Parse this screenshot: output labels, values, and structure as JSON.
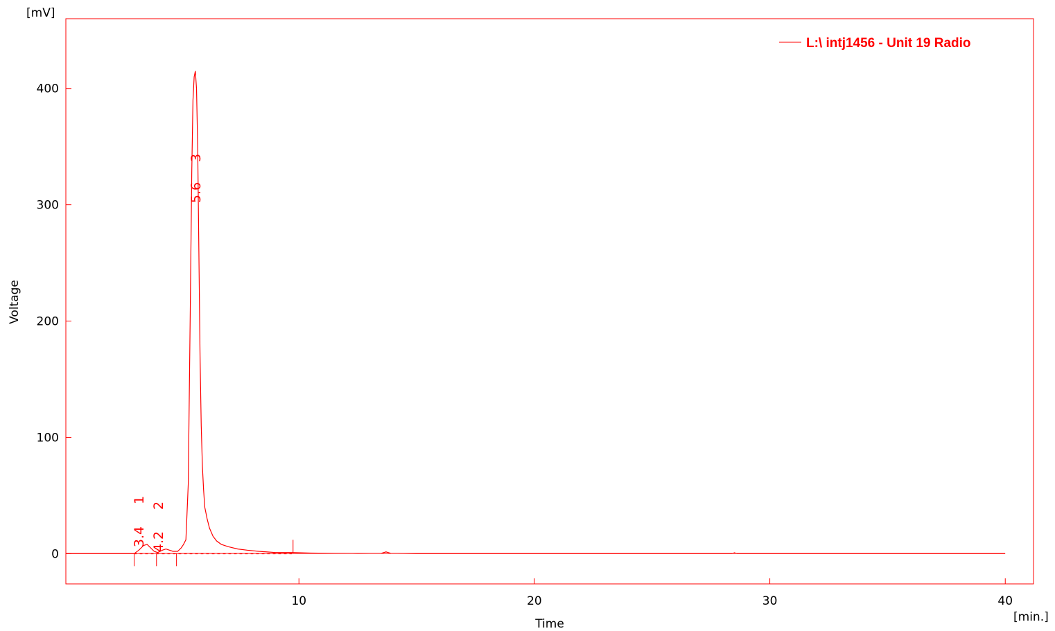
{
  "chart_data": {
    "type": "line",
    "xlabel": "Time",
    "ylabel": "Voltage",
    "x_unit": "[min.]",
    "y_unit": "[mV]",
    "xlim": [
      0.1,
      41.2
    ],
    "ylim": [
      -26,
      460
    ],
    "x_ticks": [
      10,
      20,
      30,
      40
    ],
    "y_ticks": [
      0,
      100,
      200,
      300,
      400
    ],
    "grid": false,
    "legend_position": "top-right",
    "color": "#ff0000",
    "series": [
      {
        "name": "L:\\ intj1456 - Unit 19 Radio",
        "x": [
          0.1,
          3.0,
          3.2,
          3.4,
          3.55,
          3.7,
          3.85,
          4.0,
          4.2,
          4.35,
          4.5,
          4.65,
          4.85,
          5.0,
          5.1,
          5.2,
          5.3,
          5.38,
          5.45,
          5.5,
          5.55,
          5.6,
          5.65,
          5.7,
          5.75,
          5.8,
          5.85,
          5.9,
          5.95,
          6.0,
          6.1,
          6.2,
          6.35,
          6.5,
          6.7,
          7.0,
          7.4,
          7.8,
          8.3,
          9.0,
          9.7,
          10.5,
          11.5,
          12.5,
          13.5,
          13.7,
          13.9,
          15.0,
          20.0,
          28.4,
          28.5,
          28.6,
          35.0,
          40.0
        ],
        "y": [
          0,
          0,
          3,
          7,
          8,
          5,
          2,
          1,
          3,
          4,
          3,
          2,
          2,
          5,
          8,
          12,
          60,
          200,
          330,
          390,
          410,
          415,
          400,
          350,
          260,
          170,
          110,
          75,
          55,
          40,
          30,
          22,
          15,
          11,
          8,
          6,
          4,
          3,
          2,
          1,
          1,
          0.5,
          0.3,
          0.2,
          0.3,
          1.5,
          0.3,
          0,
          0,
          0,
          0.8,
          0,
          0,
          0
        ]
      }
    ],
    "peaks": [
      {
        "number": "1",
        "time": "3.4",
        "x": 3.4
      },
      {
        "number": "2",
        "time": "4.2",
        "x": 4.2
      },
      {
        "number": "3",
        "time": "5.6",
        "x": 5.6
      }
    ],
    "baseline_x": [
      3.0,
      9.7
    ],
    "baseline_marks_x": [
      3.0,
      3.95,
      4.8,
      9.75
    ]
  }
}
